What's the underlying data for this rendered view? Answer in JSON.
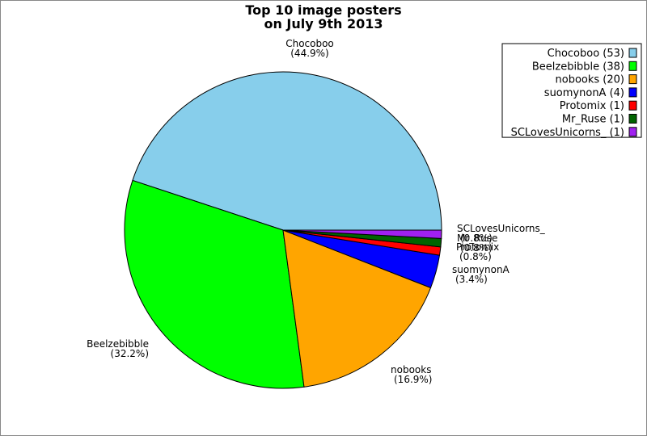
{
  "chart_data": {
    "type": "pie",
    "title_lines": [
      "Top 10 image posters",
      "on July 9th 2013"
    ],
    "slices": [
      {
        "name": "Chocoboo",
        "value": 53,
        "percent": "(44.9%)",
        "color": "#87ceeb",
        "legend": "Chocoboo (53)"
      },
      {
        "name": "Beelzebibble",
        "value": 38,
        "percent": "(32.2%)",
        "color": "#00ff00",
        "legend": "Beelzebibble (38)"
      },
      {
        "name": "nobooks",
        "value": 20,
        "percent": "(16.9%)",
        "color": "#ffa500",
        "legend": "nobooks (20)"
      },
      {
        "name": "suomynonA",
        "value": 4,
        "percent": "(3.4%)",
        "color": "#0000ff",
        "legend": "suomynonA (4)"
      },
      {
        "name": "Protomix",
        "value": 1,
        "percent": "(0.8%)",
        "color": "#ff0000",
        "legend": "Protomix (1)"
      },
      {
        "name": "Mr_Ruse",
        "value": 1,
        "percent": "(0.8%)",
        "color": "#006400",
        "legend": "Mr_Ruse (1)"
      },
      {
        "name": "SCLovesUnicorns_",
        "value": 1,
        "percent": "(0.8%)",
        "color": "#a020f0",
        "legend": "SCLovesUnicorns_ (1)"
      }
    ],
    "legend_position": "top-right"
  }
}
